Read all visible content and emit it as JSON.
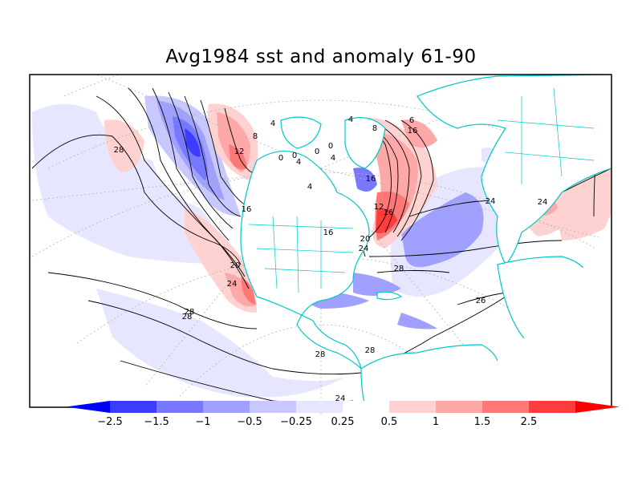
{
  "title": "Avg1984 sst and anomaly 61-90",
  "colors": {
    "coast": "#00c8c8",
    "contour": "#000000",
    "grid": "#b4b4b4",
    "frame": "#000000"
  },
  "colorbar": {
    "ticks": [
      "−2.5",
      "−1.5",
      "−1",
      "−0.5",
      "−0.25",
      "0.25",
      "0.5",
      "1",
      "1.5",
      "2.5"
    ],
    "bins": [
      "#0000ff",
      "#3c3cff",
      "#7878ff",
      "#a0a0ff",
      "#c8c8ff",
      "#e6e6ff",
      "#ffffff",
      "#ffd2d2",
      "#ffa8a8",
      "#ff7878",
      "#ff3c3c",
      "#ff0000"
    ]
  },
  "contour_labels": [
    {
      "text": "28"
    },
    {
      "text": "12"
    },
    {
      "text": "8"
    },
    {
      "text": "4"
    },
    {
      "text": "0"
    },
    {
      "text": "0"
    },
    {
      "text": "4"
    },
    {
      "text": "0"
    },
    {
      "text": "0"
    },
    {
      "text": "4"
    },
    {
      "text": "4"
    },
    {
      "text": "8"
    },
    {
      "text": "4"
    },
    {
      "text": "16"
    },
    {
      "text": "16"
    },
    {
      "text": "24"
    },
    {
      "text": "12"
    },
    {
      "text": "16"
    },
    {
      "text": "20"
    },
    {
      "text": "24"
    },
    {
      "text": "16"
    },
    {
      "text": "20"
    },
    {
      "text": "24"
    },
    {
      "text": "28"
    },
    {
      "text": "28"
    },
    {
      "text": "28"
    },
    {
      "text": "28"
    },
    {
      "text": "28"
    },
    {
      "text": "26"
    },
    {
      "text": "24"
    },
    {
      "text": "24"
    },
    {
      "text": "6"
    },
    {
      "text": "16"
    }
  ]
}
